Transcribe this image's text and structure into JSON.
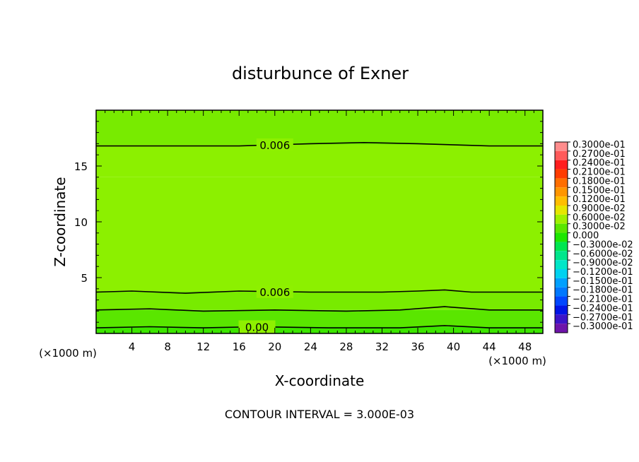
{
  "chart_data": {
    "type": "heatmap",
    "title": "disturbunce of Exner",
    "xlabel": "X-coordinate",
    "ylabel": "Z-coordinate",
    "x_unit_left": "(×1000 m)",
    "x_unit_right": "(×1000 m)",
    "xlim": [
      0,
      50
    ],
    "ylim": [
      0,
      20
    ],
    "x_ticks": [
      4,
      8,
      12,
      16,
      20,
      24,
      28,
      32,
      36,
      40,
      44,
      48
    ],
    "y_ticks": [
      5,
      10,
      15
    ],
    "footer": "CONTOUR INTERVAL = 3.000E-03",
    "contours": [
      {
        "label": "0.006",
        "label_x": 20,
        "points": [
          [
            0,
            16.8
          ],
          [
            8,
            16.8
          ],
          [
            16,
            16.8
          ],
          [
            24,
            17.0
          ],
          [
            30,
            17.1
          ],
          [
            36,
            17.0
          ],
          [
            44,
            16.8
          ],
          [
            50,
            16.8
          ]
        ]
      },
      {
        "label": "0.006",
        "label_x": 20,
        "points": [
          [
            0,
            3.7
          ],
          [
            4,
            3.8
          ],
          [
            10,
            3.6
          ],
          [
            16,
            3.8
          ],
          [
            24,
            3.7
          ],
          [
            32,
            3.7
          ],
          [
            36,
            3.8
          ],
          [
            39,
            3.9
          ],
          [
            42,
            3.7
          ],
          [
            50,
            3.7
          ]
        ]
      },
      {
        "label": "",
        "points": [
          [
            0,
            2.1
          ],
          [
            6,
            2.2
          ],
          [
            12,
            2.0
          ],
          [
            20,
            2.1
          ],
          [
            28,
            2.0
          ],
          [
            34,
            2.1
          ],
          [
            39,
            2.4
          ],
          [
            44,
            2.1
          ],
          [
            50,
            2.1
          ]
        ]
      },
      {
        "label": "0.00",
        "label_x": 18,
        "points": [
          [
            0,
            0.5
          ],
          [
            6,
            0.6
          ],
          [
            12,
            0.5
          ],
          [
            18,
            0.6
          ],
          [
            26,
            0.5
          ],
          [
            34,
            0.5
          ],
          [
            39,
            0.7
          ],
          [
            44,
            0.5
          ],
          [
            50,
            0.5
          ]
        ]
      }
    ],
    "bands": [
      {
        "from": 0,
        "to": 0.6,
        "value": 0.003
      },
      {
        "from": 0.6,
        "to": 2.1,
        "value": 0.0045
      },
      {
        "from": 2.1,
        "to": 3.8,
        "value": 0.006
      },
      {
        "from": 3.8,
        "to": 14,
        "value": 0.0085
      },
      {
        "from": 14,
        "to": 16.9,
        "value": 0.0075
      },
      {
        "from": 16.9,
        "to": 20,
        "value": 0.0068
      }
    ],
    "colorbar": {
      "labels": [
        "0.3000e-01",
        "0.2700e-01",
        "0.2400e-01",
        "0.2100e-01",
        "0.1800e-01",
        "0.1500e-01",
        "0.1200e-01",
        "0.9000e-02",
        "0.6000e-02",
        "0.3000e-02",
        "0.000",
        "−0.3000e-02",
        "−0.6000e-02",
        "−0.9000e-02",
        "−0.1200e-01",
        "−0.1500e-01",
        "−0.1800e-01",
        "−0.2100e-01",
        "−0.2400e-01",
        "−0.2700e-01",
        "−0.3000e-01"
      ],
      "colors": [
        "#ff8c8c",
        "#ff5a5a",
        "#ff1e1e",
        "#ff3c00",
        "#ff6e00",
        "#ff9600",
        "#ffbe00",
        "#e6e600",
        "#a0f000",
        "#5ae600",
        "#1ee600",
        "#00e650",
        "#00e68c",
        "#00e6c8",
        "#00d2f0",
        "#00a0ff",
        "#0078ff",
        "#0046ff",
        "#0014e6",
        "#3c14c8",
        "#6e14aa"
      ]
    },
    "colors": {
      "field_high": "#8cf000",
      "field_mid": "#78eb00",
      "field_low": "#3ce600",
      "contour": "#000000"
    }
  }
}
